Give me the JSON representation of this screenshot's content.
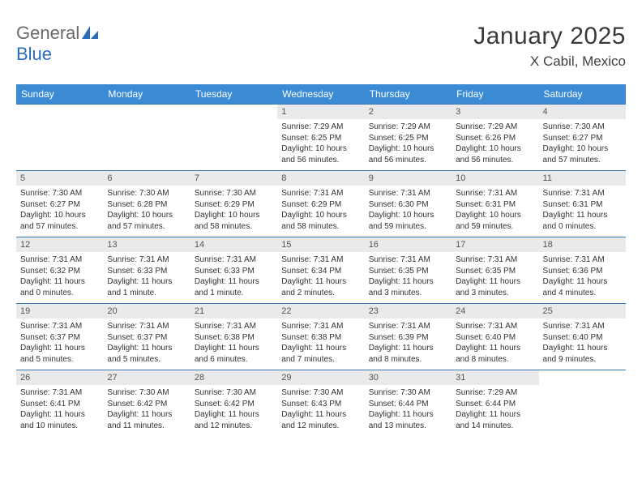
{
  "logo": {
    "word1": "General",
    "word2": "Blue"
  },
  "title": "January 2025",
  "location": "X Cabil, Mexico",
  "colors": {
    "header_bg": "#3b8bd4",
    "header_text": "#ffffff",
    "daynum_bg": "#e9eaeb",
    "cell_border": "#3b78b0",
    "logo_gray": "#6a6a6a",
    "logo_blue": "#2a6db8"
  },
  "weekdays": [
    "Sunday",
    "Monday",
    "Tuesday",
    "Wednesday",
    "Thursday",
    "Friday",
    "Saturday"
  ],
  "weeks": [
    [
      {
        "day": "",
        "sunrise": "",
        "sunset": "",
        "daylight": ""
      },
      {
        "day": "",
        "sunrise": "",
        "sunset": "",
        "daylight": ""
      },
      {
        "day": "",
        "sunrise": "",
        "sunset": "",
        "daylight": ""
      },
      {
        "day": "1",
        "sunrise": "Sunrise: 7:29 AM",
        "sunset": "Sunset: 6:25 PM",
        "daylight": "Daylight: 10 hours and 56 minutes."
      },
      {
        "day": "2",
        "sunrise": "Sunrise: 7:29 AM",
        "sunset": "Sunset: 6:25 PM",
        "daylight": "Daylight: 10 hours and 56 minutes."
      },
      {
        "day": "3",
        "sunrise": "Sunrise: 7:29 AM",
        "sunset": "Sunset: 6:26 PM",
        "daylight": "Daylight: 10 hours and 56 minutes."
      },
      {
        "day": "4",
        "sunrise": "Sunrise: 7:30 AM",
        "sunset": "Sunset: 6:27 PM",
        "daylight": "Daylight: 10 hours and 57 minutes."
      }
    ],
    [
      {
        "day": "5",
        "sunrise": "Sunrise: 7:30 AM",
        "sunset": "Sunset: 6:27 PM",
        "daylight": "Daylight: 10 hours and 57 minutes."
      },
      {
        "day": "6",
        "sunrise": "Sunrise: 7:30 AM",
        "sunset": "Sunset: 6:28 PM",
        "daylight": "Daylight: 10 hours and 57 minutes."
      },
      {
        "day": "7",
        "sunrise": "Sunrise: 7:30 AM",
        "sunset": "Sunset: 6:29 PM",
        "daylight": "Daylight: 10 hours and 58 minutes."
      },
      {
        "day": "8",
        "sunrise": "Sunrise: 7:31 AM",
        "sunset": "Sunset: 6:29 PM",
        "daylight": "Daylight: 10 hours and 58 minutes."
      },
      {
        "day": "9",
        "sunrise": "Sunrise: 7:31 AM",
        "sunset": "Sunset: 6:30 PM",
        "daylight": "Daylight: 10 hours and 59 minutes."
      },
      {
        "day": "10",
        "sunrise": "Sunrise: 7:31 AM",
        "sunset": "Sunset: 6:31 PM",
        "daylight": "Daylight: 10 hours and 59 minutes."
      },
      {
        "day": "11",
        "sunrise": "Sunrise: 7:31 AM",
        "sunset": "Sunset: 6:31 PM",
        "daylight": "Daylight: 11 hours and 0 minutes."
      }
    ],
    [
      {
        "day": "12",
        "sunrise": "Sunrise: 7:31 AM",
        "sunset": "Sunset: 6:32 PM",
        "daylight": "Daylight: 11 hours and 0 minutes."
      },
      {
        "day": "13",
        "sunrise": "Sunrise: 7:31 AM",
        "sunset": "Sunset: 6:33 PM",
        "daylight": "Daylight: 11 hours and 1 minute."
      },
      {
        "day": "14",
        "sunrise": "Sunrise: 7:31 AM",
        "sunset": "Sunset: 6:33 PM",
        "daylight": "Daylight: 11 hours and 1 minute."
      },
      {
        "day": "15",
        "sunrise": "Sunrise: 7:31 AM",
        "sunset": "Sunset: 6:34 PM",
        "daylight": "Daylight: 11 hours and 2 minutes."
      },
      {
        "day": "16",
        "sunrise": "Sunrise: 7:31 AM",
        "sunset": "Sunset: 6:35 PM",
        "daylight": "Daylight: 11 hours and 3 minutes."
      },
      {
        "day": "17",
        "sunrise": "Sunrise: 7:31 AM",
        "sunset": "Sunset: 6:35 PM",
        "daylight": "Daylight: 11 hours and 3 minutes."
      },
      {
        "day": "18",
        "sunrise": "Sunrise: 7:31 AM",
        "sunset": "Sunset: 6:36 PM",
        "daylight": "Daylight: 11 hours and 4 minutes."
      }
    ],
    [
      {
        "day": "19",
        "sunrise": "Sunrise: 7:31 AM",
        "sunset": "Sunset: 6:37 PM",
        "daylight": "Daylight: 11 hours and 5 minutes."
      },
      {
        "day": "20",
        "sunrise": "Sunrise: 7:31 AM",
        "sunset": "Sunset: 6:37 PM",
        "daylight": "Daylight: 11 hours and 5 minutes."
      },
      {
        "day": "21",
        "sunrise": "Sunrise: 7:31 AM",
        "sunset": "Sunset: 6:38 PM",
        "daylight": "Daylight: 11 hours and 6 minutes."
      },
      {
        "day": "22",
        "sunrise": "Sunrise: 7:31 AM",
        "sunset": "Sunset: 6:38 PM",
        "daylight": "Daylight: 11 hours and 7 minutes."
      },
      {
        "day": "23",
        "sunrise": "Sunrise: 7:31 AM",
        "sunset": "Sunset: 6:39 PM",
        "daylight": "Daylight: 11 hours and 8 minutes."
      },
      {
        "day": "24",
        "sunrise": "Sunrise: 7:31 AM",
        "sunset": "Sunset: 6:40 PM",
        "daylight": "Daylight: 11 hours and 8 minutes."
      },
      {
        "day": "25",
        "sunrise": "Sunrise: 7:31 AM",
        "sunset": "Sunset: 6:40 PM",
        "daylight": "Daylight: 11 hours and 9 minutes."
      }
    ],
    [
      {
        "day": "26",
        "sunrise": "Sunrise: 7:31 AM",
        "sunset": "Sunset: 6:41 PM",
        "daylight": "Daylight: 11 hours and 10 minutes."
      },
      {
        "day": "27",
        "sunrise": "Sunrise: 7:30 AM",
        "sunset": "Sunset: 6:42 PM",
        "daylight": "Daylight: 11 hours and 11 minutes."
      },
      {
        "day": "28",
        "sunrise": "Sunrise: 7:30 AM",
        "sunset": "Sunset: 6:42 PM",
        "daylight": "Daylight: 11 hours and 12 minutes."
      },
      {
        "day": "29",
        "sunrise": "Sunrise: 7:30 AM",
        "sunset": "Sunset: 6:43 PM",
        "daylight": "Daylight: 11 hours and 12 minutes."
      },
      {
        "day": "30",
        "sunrise": "Sunrise: 7:30 AM",
        "sunset": "Sunset: 6:44 PM",
        "daylight": "Daylight: 11 hours and 13 minutes."
      },
      {
        "day": "31",
        "sunrise": "Sunrise: 7:29 AM",
        "sunset": "Sunset: 6:44 PM",
        "daylight": "Daylight: 11 hours and 14 minutes."
      },
      {
        "day": "",
        "sunrise": "",
        "sunset": "",
        "daylight": ""
      }
    ]
  ]
}
